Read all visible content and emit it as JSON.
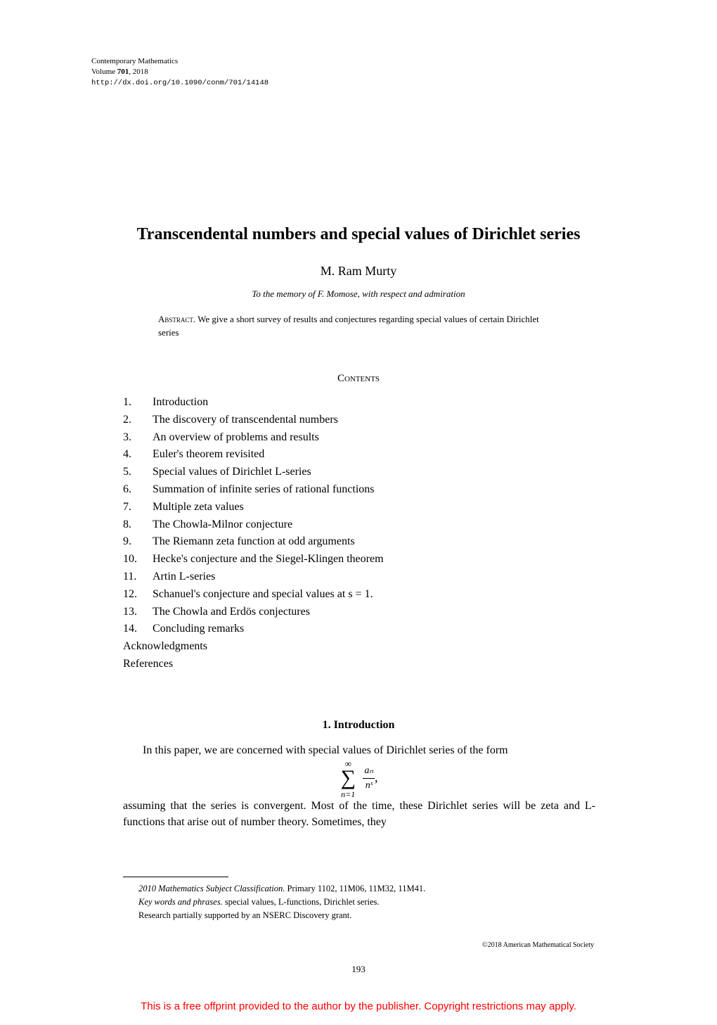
{
  "header": {
    "journal": "Contemporary Mathematics",
    "volume_prefix": "Volume ",
    "volume_number": "701",
    "volume_suffix": ", 2018",
    "doi": "http://dx.doi.org/10.1090/conm/701/14148"
  },
  "title": "Transcendental numbers and special values of Dirichlet series",
  "author": "M. Ram Murty",
  "dedication": "To the memory of F. Momose, with respect and admiration",
  "abstract": {
    "label": "Abstract.",
    "text": " We give a short survey of results and conjectures regarding special values of certain Dirichlet series"
  },
  "contents_heading": "Contents",
  "contents": [
    {
      "num": "1.",
      "label": "Introduction"
    },
    {
      "num": "2.",
      "label": "The discovery of transcendental numbers"
    },
    {
      "num": "3.",
      "label": "An overview of problems and results"
    },
    {
      "num": "4.",
      "label": "Euler's theorem revisited"
    },
    {
      "num": "5.",
      "label": "Special values of Dirichlet L-series"
    },
    {
      "num": "6.",
      "label": "Summation of infinite series of rational functions"
    },
    {
      "num": "7.",
      "label": "Multiple zeta values"
    },
    {
      "num": "8.",
      "label": "The Chowla-Milnor conjecture"
    },
    {
      "num": "9.",
      "label": "The Riemann zeta function at odd arguments"
    },
    {
      "num": "10.",
      "label": "Hecke's conjecture and the Siegel-Klingen theorem"
    },
    {
      "num": "11.",
      "label": "Artin L-series"
    },
    {
      "num": "12.",
      "label": "Schanuel's conjecture and special values at s = 1."
    },
    {
      "num": "13.",
      "label": "The Chowla and Erdös conjectures"
    },
    {
      "num": "14.",
      "label": "Concluding remarks"
    }
  ],
  "contents_extra": [
    "Acknowledgments",
    "References"
  ],
  "section": {
    "heading": "1. Introduction",
    "para1": "In this paper, we are concerned with special values of Dirichlet series of the form",
    "formula": {
      "top": "∞",
      "bottom": "n=1",
      "numerator": "aₙ",
      "denominator": "nˢ",
      "comma": ","
    },
    "para2": "assuming that the series is convergent. Most of the time, these Dirichlet series will be zeta and L-functions that arise out of number theory. Sometimes, they"
  },
  "footnotes": {
    "msc_label": "2010 Mathematics Subject Classification.",
    "msc_text": " Primary 1102, 11M06, 11M32, 11M41.",
    "key_label": "Key words and phrases.",
    "key_text": " special values, L-functions, Dirichlet series.",
    "support": "Research partially supported by an NSERC Discovery grant."
  },
  "copyright": "©2018 American Mathematical Society",
  "page_number": "193",
  "disclaimer": "This is a free offprint provided to the author by the publisher. Copyright restrictions may apply."
}
